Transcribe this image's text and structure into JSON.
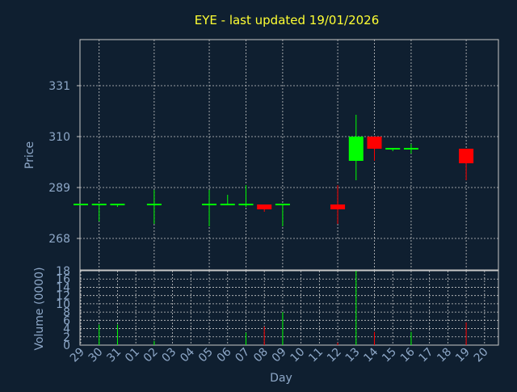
{
  "chart_data": [
    {
      "type": "candlestick",
      "title": "EYE - last updated 19/01/2026",
      "ylabel": "Price",
      "ylim": [
        255,
        350
      ],
      "yticks": [
        268,
        289,
        310,
        331
      ],
      "categories": [
        "29",
        "30",
        "31",
        "01",
        "02",
        "03",
        "04",
        "05",
        "06",
        "07",
        "08",
        "09",
        "10",
        "11",
        "12",
        "13",
        "14",
        "15",
        "16",
        "17",
        "18",
        "19",
        "20"
      ],
      "up_color": "#00ff00",
      "down_color": "#ff0000",
      "candles": [
        {
          "x": "29",
          "open": 282,
          "high": 282,
          "low": 282,
          "close": 282
        },
        {
          "x": "30",
          "open": 282,
          "high": 282,
          "low": 275,
          "close": 282
        },
        {
          "x": "31",
          "open": 282,
          "high": 282,
          "low": 281,
          "close": 282
        },
        {
          "x": "02",
          "open": 282,
          "high": 288,
          "low": 274,
          "close": 282
        },
        {
          "x": "05",
          "open": 282,
          "high": 288,
          "low": 273,
          "close": 282
        },
        {
          "x": "06",
          "open": 282,
          "high": 286,
          "low": 282,
          "close": 282
        },
        {
          "x": "07",
          "open": 282,
          "high": 290,
          "low": 281,
          "close": 282
        },
        {
          "x": "08",
          "open": 282,
          "high": 282,
          "low": 279,
          "close": 280
        },
        {
          "x": "09",
          "open": 282,
          "high": 282,
          "low": 273,
          "close": 282
        },
        {
          "x": "12",
          "open": 282,
          "high": 290,
          "low": 274,
          "close": 280
        },
        {
          "x": "13",
          "open": 300,
          "high": 319,
          "low": 292,
          "close": 310
        },
        {
          "x": "14",
          "open": 310,
          "high": 310,
          "low": 300,
          "close": 305
        },
        {
          "x": "15",
          "open": 305,
          "high": 305,
          "low": 304,
          "close": 305
        },
        {
          "x": "16",
          "open": 305,
          "high": 307,
          "low": 303,
          "close": 305
        },
        {
          "x": "19",
          "open": 305,
          "high": 305,
          "low": 292,
          "close": 299
        }
      ]
    },
    {
      "type": "bar",
      "ylabel": "Volume (0000)",
      "xlabel": "Day",
      "ylim": [
        0,
        18
      ],
      "yticks": [
        0,
        2,
        4,
        6,
        8,
        10,
        12,
        14,
        16,
        18
      ],
      "categories": [
        "29",
        "30",
        "31",
        "01",
        "02",
        "03",
        "04",
        "05",
        "06",
        "07",
        "08",
        "09",
        "10",
        "11",
        "12",
        "13",
        "14",
        "15",
        "16",
        "17",
        "18",
        "19",
        "20"
      ],
      "bars": [
        {
          "x": "30",
          "value": 5,
          "color": "#00ff00"
        },
        {
          "x": "31",
          "value": 5,
          "color": "#00ff00"
        },
        {
          "x": "02",
          "value": 1,
          "color": "#00ff00"
        },
        {
          "x": "07",
          "value": 3,
          "color": "#00ff00"
        },
        {
          "x": "08",
          "value": 4.5,
          "color": "#ff0000"
        },
        {
          "x": "09",
          "value": 8,
          "color": "#00ff00"
        },
        {
          "x": "12",
          "value": 0.6,
          "color": "#ff0000"
        },
        {
          "x": "13",
          "value": 18,
          "color": "#00ff00"
        },
        {
          "x": "14",
          "value": 3.2,
          "color": "#ff0000"
        },
        {
          "x": "16",
          "value": 3.2,
          "color": "#00ff00"
        },
        {
          "x": "19",
          "value": 5.5,
          "color": "#ff0000"
        }
      ]
    }
  ]
}
